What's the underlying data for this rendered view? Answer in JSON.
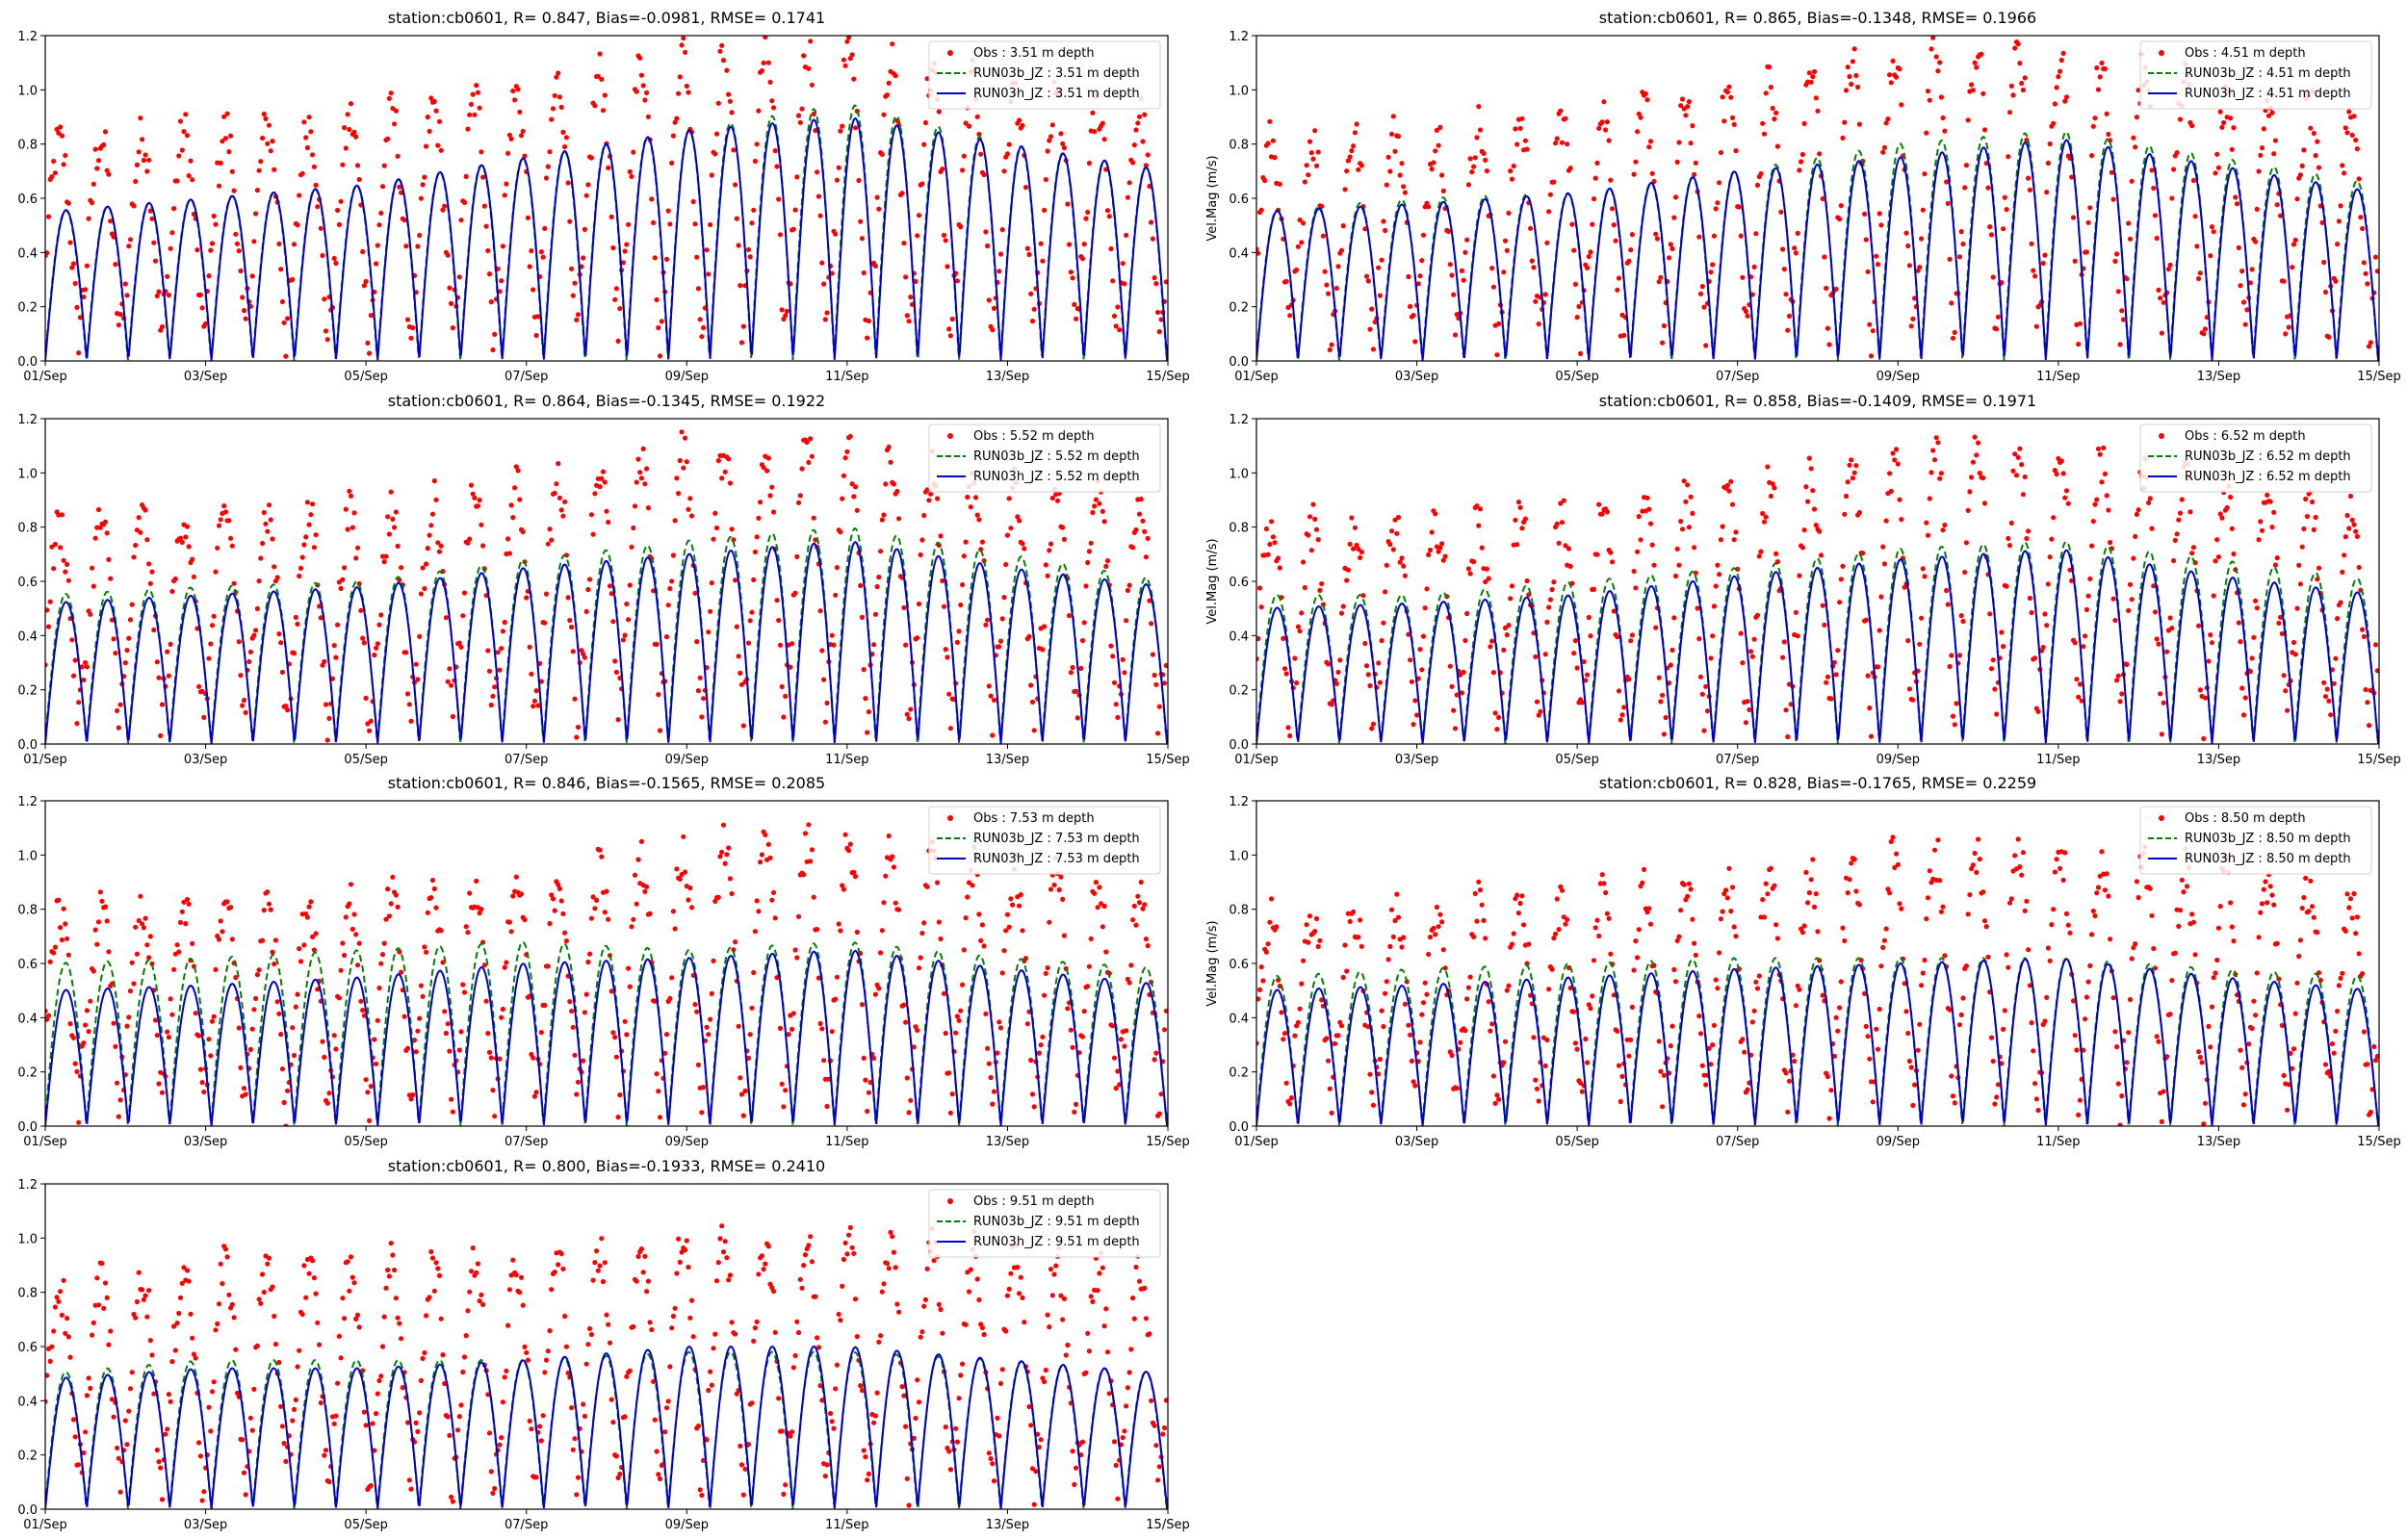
{
  "figure": {
    "ylabel": "Vel.Mag (m/s)"
  },
  "axis_common": {
    "xtick_labels": [
      "01/Sep",
      "03/Sep",
      "05/Sep",
      "07/Sep",
      "09/Sep",
      "11/Sep",
      "13/Sep",
      "15/Sep"
    ],
    "ytick_labels": [
      "0.0",
      "0.2",
      "0.4",
      "0.6",
      "0.8",
      "1.0",
      "1.2"
    ]
  },
  "colors": {
    "obs": "#ff0000",
    "run03b": "#008000",
    "run03h": "#0000cc"
  },
  "chart_data": [
    {
      "type": "line",
      "title": "station:cb0601, R= 0.847, Bias=-0.0981, RMSE= 0.1741",
      "ylabel": "",
      "depth": 3.51,
      "xlim": [
        "2023-09-01",
        "2023-09-15"
      ],
      "ylim": [
        0,
        1.2
      ],
      "grid": false,
      "legend_position": "top-right",
      "legend": [
        "Obs : 3.51 m depth",
        "RUN03b_JZ : 3.51 m depth",
        "RUN03h_JZ : 3.51 m depth"
      ],
      "series": [
        {
          "name": "Obs : 3.51 m depth",
          "style": "scatter-dots",
          "color": "#ff0000",
          "approx_peak_envelope": [
            [
              1,
              0.75
            ],
            [
              3,
              0.8
            ],
            [
              5,
              0.85
            ],
            [
              7,
              0.95
            ],
            [
              9,
              1.1
            ],
            [
              11,
              1.1
            ],
            [
              13,
              0.95
            ],
            [
              15,
              0.85
            ]
          ],
          "min": 0.0
        },
        {
          "name": "RUN03b_JZ : 3.51 m depth",
          "style": "dashed",
          "color": "#008000",
          "approx_peak_envelope": [
            [
              1,
              0.55
            ],
            [
              3,
              0.6
            ],
            [
              5,
              0.65
            ],
            [
              7,
              0.75
            ],
            [
              9,
              0.85
            ],
            [
              11,
              0.95
            ],
            [
              13,
              0.8
            ],
            [
              15,
              0.7
            ]
          ],
          "min": 0.0
        },
        {
          "name": "RUN03h_JZ : 3.51 m depth",
          "style": "solid",
          "color": "#0000cc",
          "approx_peak_envelope": [
            [
              1,
              0.55
            ],
            [
              3,
              0.6
            ],
            [
              5,
              0.65
            ],
            [
              7,
              0.75
            ],
            [
              9,
              0.85
            ],
            [
              11,
              0.9
            ],
            [
              13,
              0.8
            ],
            [
              15,
              0.7
            ]
          ],
          "min": 0.0
        }
      ],
      "semidiurnal_cycles_per_day": 1.93
    },
    {
      "type": "line",
      "title": "station:cb0601, R= 0.865, Bias=-0.1348, RMSE= 0.1966",
      "ylabel": "Vel.Mag (m/s)",
      "depth": 4.51,
      "xlim": [
        "2023-09-01",
        "2023-09-15"
      ],
      "ylim": [
        0,
        1.2
      ],
      "grid": false,
      "legend_position": "top-right",
      "legend": [
        "Obs : 4.51 m depth",
        "RUN03b_JZ : 4.51 m depth",
        "RUN03h_JZ : 4.51 m depth"
      ],
      "series": [
        {
          "name": "Obs : 4.51 m depth",
          "style": "scatter-dots",
          "color": "#ff0000",
          "approx_peak_envelope": [
            [
              1,
              0.75
            ],
            [
              3,
              0.8
            ],
            [
              5,
              0.85
            ],
            [
              7,
              0.95
            ],
            [
              9,
              1.1
            ],
            [
              11,
              1.1
            ],
            [
              13,
              0.95
            ],
            [
              15,
              0.85
            ]
          ],
          "min": 0.0
        },
        {
          "name": "RUN03b_JZ : 4.51 m depth",
          "style": "dashed",
          "color": "#008000",
          "approx_peak_envelope": [
            [
              1,
              0.55
            ],
            [
              3,
              0.6
            ],
            [
              5,
              0.62
            ],
            [
              7,
              0.7
            ],
            [
              9,
              0.8
            ],
            [
              11,
              0.85
            ],
            [
              13,
              0.75
            ],
            [
              15,
              0.65
            ]
          ],
          "min": 0.0
        },
        {
          "name": "RUN03h_JZ : 4.51 m depth",
          "style": "solid",
          "color": "#0000cc",
          "approx_peak_envelope": [
            [
              1,
              0.55
            ],
            [
              3,
              0.58
            ],
            [
              5,
              0.62
            ],
            [
              7,
              0.7
            ],
            [
              9,
              0.75
            ],
            [
              11,
              0.82
            ],
            [
              13,
              0.72
            ],
            [
              15,
              0.62
            ]
          ],
          "min": 0.0
        }
      ],
      "semidiurnal_cycles_per_day": 1.93
    },
    {
      "type": "line",
      "title": "station:cb0601, R= 0.864, Bias=-0.1345, RMSE= 0.1922",
      "ylabel": "",
      "depth": 5.52,
      "xlim": [
        "2023-09-01",
        "2023-09-15"
      ],
      "ylim": [
        0,
        1.2
      ],
      "grid": false,
      "legend_position": "top-right",
      "legend": [
        "Obs : 5.52 m depth",
        "RUN03b_JZ : 5.52 m depth",
        "RUN03h_JZ : 5.52 m depth"
      ],
      "series": [
        {
          "name": "Obs : 5.52 m depth",
          "style": "scatter-dots",
          "color": "#ff0000",
          "approx_peak_envelope": [
            [
              1,
              0.75
            ],
            [
              3,
              0.8
            ],
            [
              5,
              0.8
            ],
            [
              7,
              0.9
            ],
            [
              9,
              1.05
            ],
            [
              11,
              1.05
            ],
            [
              13,
              0.9
            ],
            [
              15,
              0.85
            ]
          ],
          "min": 0.0
        },
        {
          "name": "RUN03b_JZ : 5.52 m depth",
          "style": "dashed",
          "color": "#008000",
          "approx_peak_envelope": [
            [
              1,
              0.55
            ],
            [
              3,
              0.58
            ],
            [
              5,
              0.6
            ],
            [
              7,
              0.68
            ],
            [
              9,
              0.75
            ],
            [
              11,
              0.8
            ],
            [
              13,
              0.7
            ],
            [
              15,
              0.6
            ]
          ],
          "min": 0.0
        },
        {
          "name": "RUN03h_JZ : 5.52 m depth",
          "style": "solid",
          "color": "#0000cc",
          "approx_peak_envelope": [
            [
              1,
              0.52
            ],
            [
              3,
              0.55
            ],
            [
              5,
              0.58
            ],
            [
              7,
              0.65
            ],
            [
              9,
              0.7
            ],
            [
              11,
              0.75
            ],
            [
              13,
              0.65
            ],
            [
              15,
              0.58
            ]
          ],
          "min": 0.0
        }
      ],
      "semidiurnal_cycles_per_day": 1.93
    },
    {
      "type": "line",
      "title": "station:cb0601, R= 0.858, Bias=-0.1409, RMSE= 0.1971",
      "ylabel": "Vel.Mag (m/s)",
      "depth": 6.52,
      "xlim": [
        "2023-09-01",
        "2023-09-15"
      ],
      "ylim": [
        0,
        1.2
      ],
      "grid": false,
      "legend_position": "top-right",
      "legend": [
        "Obs : 6.52 m depth",
        "RUN03b_JZ : 6.52 m depth",
        "RUN03h_JZ : 6.52 m depth"
      ],
      "series": [
        {
          "name": "Obs : 6.52 m depth",
          "style": "scatter-dots",
          "color": "#ff0000",
          "approx_peak_envelope": [
            [
              1,
              0.75
            ],
            [
              3,
              0.75
            ],
            [
              5,
              0.8
            ],
            [
              7,
              0.88
            ],
            [
              9,
              1.0
            ],
            [
              11,
              1.05
            ],
            [
              13,
              0.9
            ],
            [
              15,
              0.8
            ]
          ],
          "min": 0.0
        },
        {
          "name": "RUN03b_JZ : 6.52 m depth",
          "style": "dashed",
          "color": "#008000",
          "approx_peak_envelope": [
            [
              1,
              0.55
            ],
            [
              3,
              0.55
            ],
            [
              5,
              0.6
            ],
            [
              7,
              0.65
            ],
            [
              9,
              0.72
            ],
            [
              11,
              0.75
            ],
            [
              13,
              0.68
            ],
            [
              15,
              0.6
            ]
          ],
          "min": 0.0
        },
        {
          "name": "RUN03h_JZ : 6.52 m depth",
          "style": "solid",
          "color": "#0000cc",
          "approx_peak_envelope": [
            [
              1,
              0.5
            ],
            [
              3,
              0.52
            ],
            [
              5,
              0.55
            ],
            [
              7,
              0.62
            ],
            [
              9,
              0.68
            ],
            [
              11,
              0.72
            ],
            [
              13,
              0.62
            ],
            [
              15,
              0.55
            ]
          ],
          "min": 0.0
        }
      ],
      "semidiurnal_cycles_per_day": 1.93
    },
    {
      "type": "line",
      "title": "station:cb0601, R= 0.846, Bias=-0.1565, RMSE= 0.2085",
      "ylabel": "",
      "depth": 7.53,
      "xlim": [
        "2023-09-01",
        "2023-09-15"
      ],
      "ylim": [
        0,
        1.2
      ],
      "grid": false,
      "legend_position": "top-right",
      "legend": [
        "Obs : 7.53 m depth",
        "RUN03b_JZ : 7.53 m depth",
        "RUN03h_JZ : 7.53 m depth"
      ],
      "series": [
        {
          "name": "Obs : 7.53 m depth",
          "style": "scatter-dots",
          "color": "#ff0000",
          "approx_peak_envelope": [
            [
              1,
              0.72
            ],
            [
              3,
              0.75
            ],
            [
              5,
              0.78
            ],
            [
              7,
              0.85
            ],
            [
              9,
              0.98
            ],
            [
              11,
              1.0
            ],
            [
              13,
              0.88
            ],
            [
              15,
              0.8
            ]
          ],
          "min": 0.0
        },
        {
          "name": "RUN03b_JZ : 7.53 m depth",
          "style": "dashed",
          "color": "#008000",
          "approx_peak_envelope": [
            [
              1,
              0.6
            ],
            [
              3,
              0.62
            ],
            [
              5,
              0.65
            ],
            [
              7,
              0.68
            ],
            [
              9,
              0.65
            ],
            [
              11,
              0.68
            ],
            [
              13,
              0.62
            ],
            [
              15,
              0.58
            ]
          ],
          "min": 0.0
        },
        {
          "name": "RUN03h_JZ : 7.53 m depth",
          "style": "solid",
          "color": "#0000cc",
          "approx_peak_envelope": [
            [
              1,
              0.5
            ],
            [
              3,
              0.52
            ],
            [
              5,
              0.55
            ],
            [
              7,
              0.6
            ],
            [
              9,
              0.62
            ],
            [
              11,
              0.65
            ],
            [
              13,
              0.58
            ],
            [
              15,
              0.52
            ]
          ],
          "min": 0.0
        }
      ],
      "semidiurnal_cycles_per_day": 1.93
    },
    {
      "type": "line",
      "title": "station:cb0601, R= 0.828, Bias=-0.1765, RMSE= 0.2259",
      "ylabel": "Vel.Mag (m/s)",
      "depth": 8.5,
      "xlim": [
        "2023-09-01",
        "2023-09-15"
      ],
      "ylim": [
        0,
        1.2
      ],
      "grid": false,
      "legend_position": "top-right",
      "legend": [
        "Obs : 8.50 m depth",
        "RUN03b_JZ : 8.50 m depth",
        "RUN03h_JZ : 8.50 m depth"
      ],
      "series": [
        {
          "name": "Obs : 8.50 m depth",
          "style": "scatter-dots",
          "color": "#ff0000",
          "approx_peak_envelope": [
            [
              1,
              0.7
            ],
            [
              3,
              0.75
            ],
            [
              5,
              0.78
            ],
            [
              7,
              0.85
            ],
            [
              9,
              0.95
            ],
            [
              11,
              0.98
            ],
            [
              13,
              0.88
            ],
            [
              15,
              0.8
            ]
          ],
          "min": 0.0
        },
        {
          "name": "RUN03b_JZ : 8.50 m depth",
          "style": "dashed",
          "color": "#008000",
          "approx_peak_envelope": [
            [
              1,
              0.55
            ],
            [
              3,
              0.58
            ],
            [
              5,
              0.6
            ],
            [
              7,
              0.62
            ],
            [
              9,
              0.62
            ],
            [
              11,
              0.62
            ],
            [
              13,
              0.58
            ],
            [
              15,
              0.55
            ]
          ],
          "min": 0.0
        },
        {
          "name": "RUN03h_JZ : 8.50 m depth",
          "style": "solid",
          "color": "#0000cc",
          "approx_peak_envelope": [
            [
              1,
              0.5
            ],
            [
              3,
              0.52
            ],
            [
              5,
              0.55
            ],
            [
              7,
              0.58
            ],
            [
              9,
              0.6
            ],
            [
              11,
              0.62
            ],
            [
              13,
              0.55
            ],
            [
              15,
              0.5
            ]
          ],
          "min": 0.0
        }
      ],
      "semidiurnal_cycles_per_day": 1.93
    },
    {
      "type": "line",
      "title": "station:cb0601, R= 0.800, Bias=-0.1933, RMSE= 0.2410",
      "ylabel": "",
      "depth": 9.51,
      "xlim": [
        "2023-09-01",
        "2023-09-15"
      ],
      "ylim": [
        0,
        1.2
      ],
      "grid": false,
      "legend_position": "top-right",
      "legend": [
        "Obs : 9.51 m depth",
        "RUN03b_JZ : 9.51 m depth",
        "RUN03h_JZ : 9.51 m depth"
      ],
      "series": [
        {
          "name": "Obs : 9.51 m depth",
          "style": "scatter-dots",
          "color": "#ff0000",
          "approx_peak_envelope": [
            [
              1,
              0.75
            ],
            [
              3,
              0.85
            ],
            [
              5,
              0.85
            ],
            [
              7,
              0.85
            ],
            [
              9,
              0.95
            ],
            [
              11,
              0.92
            ],
            [
              13,
              0.9
            ],
            [
              15,
              0.8
            ]
          ],
          "min": 0.0
        },
        {
          "name": "RUN03b_JZ : 9.51 m depth",
          "style": "dashed",
          "color": "#008000",
          "approx_peak_envelope": [
            [
              1,
              0.5
            ],
            [
              3,
              0.55
            ],
            [
              5,
              0.55
            ],
            [
              7,
              0.55
            ],
            [
              9,
              0.58
            ],
            [
              11,
              0.58
            ],
            [
              13,
              0.55
            ],
            [
              15,
              0.5
            ]
          ],
          "min": 0.0
        },
        {
          "name": "RUN03h_JZ : 9.51 m depth",
          "style": "solid",
          "color": "#0000cc",
          "approx_peak_envelope": [
            [
              1,
              0.48
            ],
            [
              3,
              0.52
            ],
            [
              5,
              0.52
            ],
            [
              7,
              0.55
            ],
            [
              9,
              0.6
            ],
            [
              11,
              0.6
            ],
            [
              13,
              0.55
            ],
            [
              15,
              0.5
            ]
          ],
          "min": 0.0
        }
      ],
      "semidiurnal_cycles_per_day": 1.93
    }
  ]
}
